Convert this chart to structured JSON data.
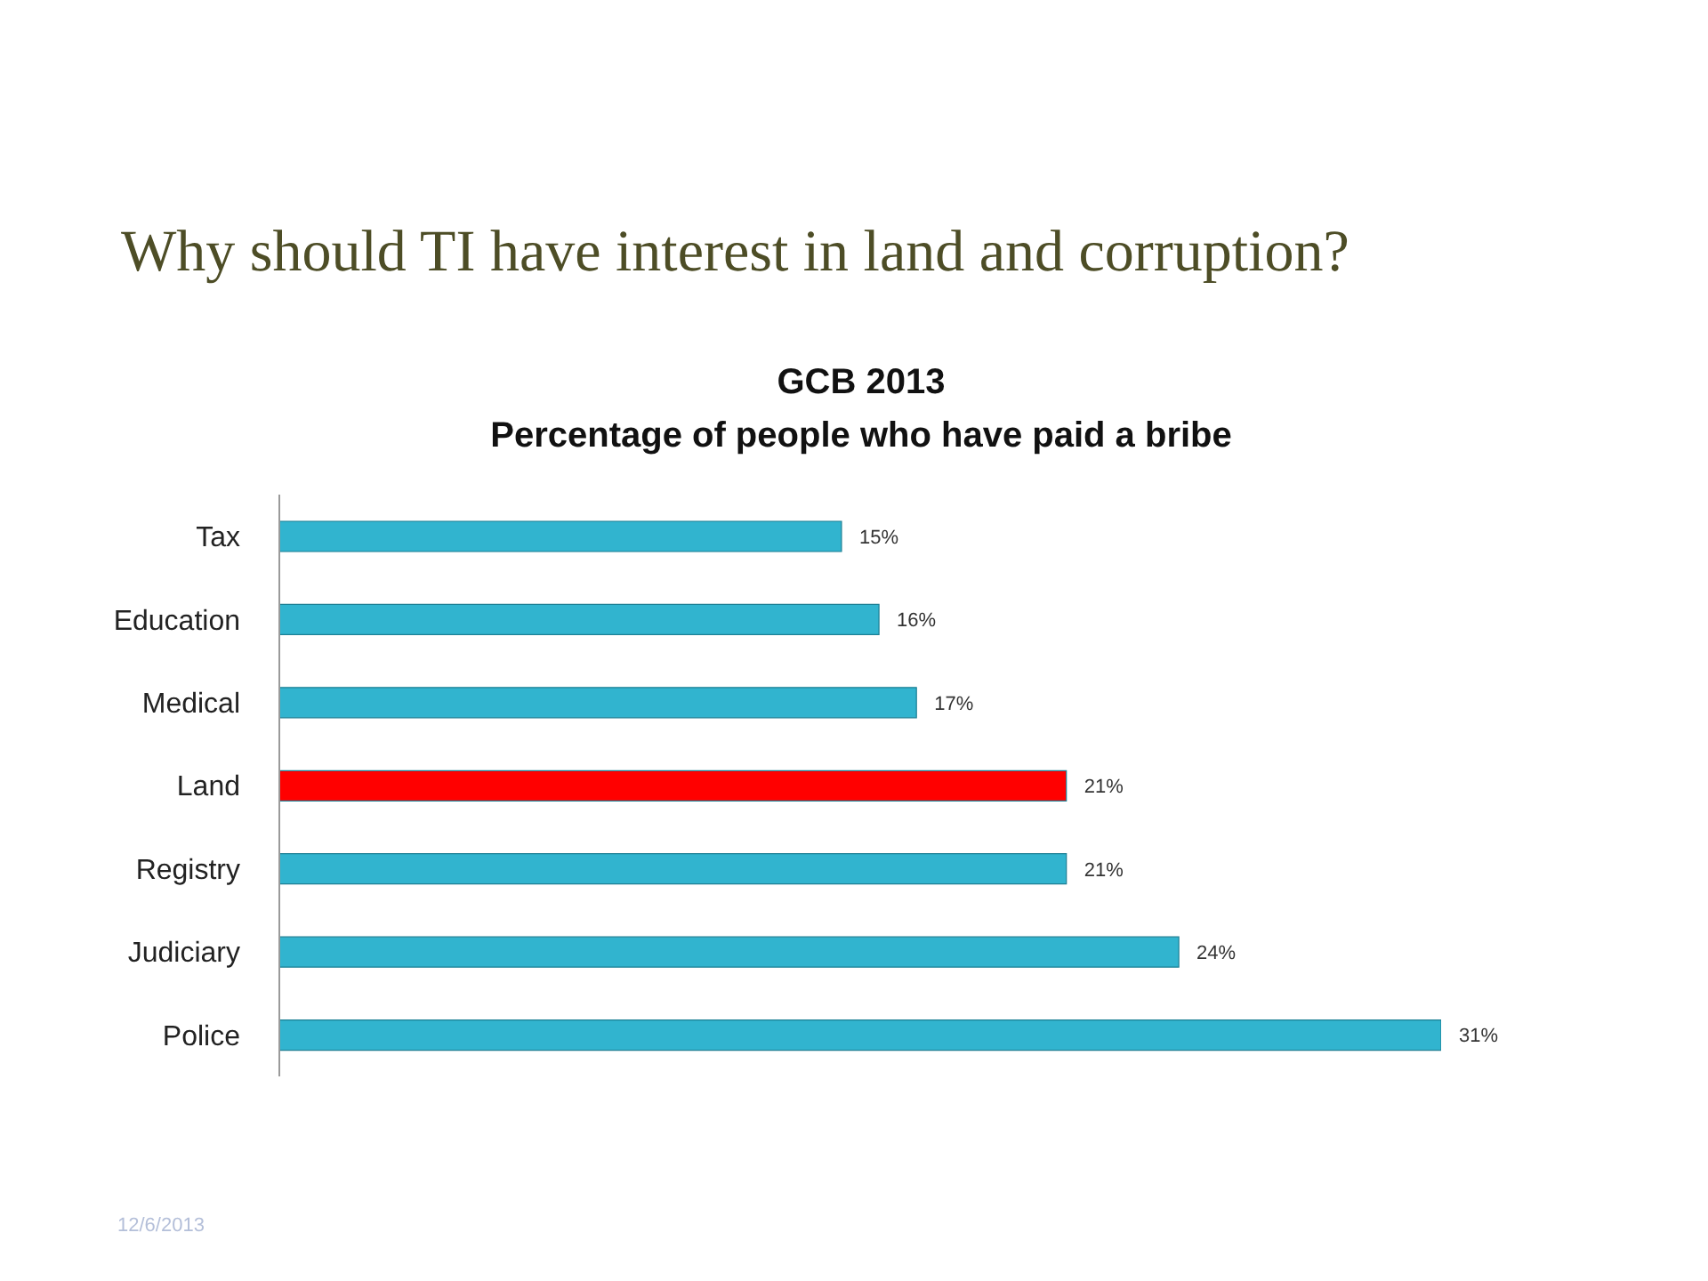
{
  "chart_data": {
    "type": "bar",
    "orientation": "horizontal",
    "title": "Why should TI have interest in land and corruption?",
    "subtitle": "GCB 2013\nPercentage of people who have paid a bribe",
    "categories": [
      "Tax",
      "Education",
      "Medical",
      "Land",
      "Registry",
      "Judiciary",
      "Police"
    ],
    "values": [
      15,
      16,
      17,
      21,
      21,
      24,
      31
    ],
    "colors": [
      "#31b4cf",
      "#31b4cf",
      "#31b4cf",
      "#ff0000",
      "#31b4cf",
      "#31b4cf",
      "#31b4cf"
    ],
    "value_labels": [
      "15%",
      "16%",
      "17%",
      "21%",
      "21%",
      "24%",
      "31%"
    ],
    "grid": false,
    "annotations": [
      "12/6/2013"
    ]
  }
}
